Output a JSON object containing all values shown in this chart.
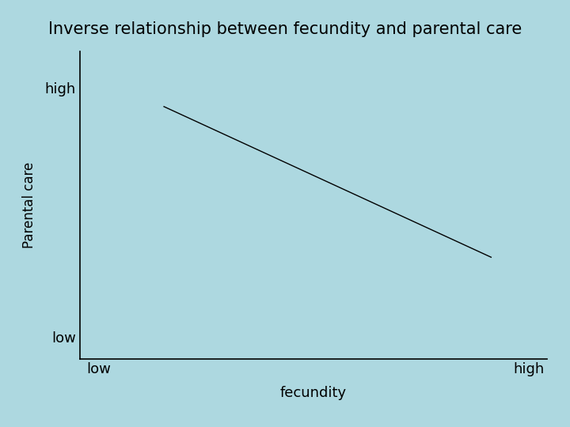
{
  "title": "Inverse relationship between fecundity and parental care",
  "title_fontsize": 15,
  "xlabel": "fecundity",
  "ylabel": "Parental care",
  "xlabel_fontsize": 13,
  "ylabel_fontsize": 12,
  "background_color": "#add8e0",
  "plot_bg_color": "#add8e0",
  "line_color": "#000000",
  "line_width": 1.0,
  "line_style": "-",
  "x_line_start": 0.18,
  "x_line_end": 0.88,
  "y_line_start": 0.82,
  "y_line_end": 0.33,
  "ytick_labels": [
    "high",
    "low"
  ],
  "ytick_positions": [
    0.88,
    0.07
  ],
  "xtick_labels": [
    "low",
    "high"
  ],
  "xtick_positions": [
    0.04,
    0.96
  ],
  "spine_color": "#000000",
  "tick_label_fontsize": 13
}
